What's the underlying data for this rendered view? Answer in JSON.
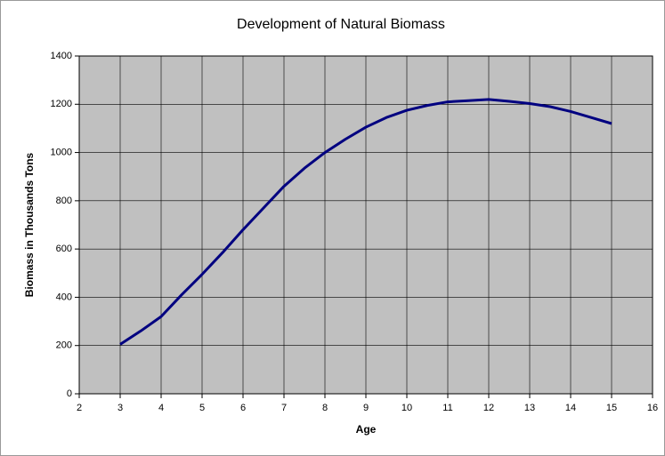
{
  "chart_data": {
    "type": "line",
    "title": "Development of Natural Biomass",
    "xlabel": "Age",
    "ylabel": "Biomass in Thousands Tons",
    "x": [
      3,
      3.5,
      4,
      4.5,
      5,
      5.5,
      6,
      6.5,
      7,
      7.5,
      8,
      8.5,
      9,
      9.5,
      10,
      10.5,
      11,
      11.5,
      12,
      12.5,
      13,
      13.5,
      14,
      14.5,
      15
    ],
    "series": [
      {
        "color": "#000080",
        "values": [
          205,
          260,
          320,
          410,
          495,
          585,
          680,
          770,
          860,
          935,
          1000,
          1055,
          1105,
          1145,
          1175,
          1195,
          1210,
          1215,
          1220,
          1212,
          1203,
          1190,
          1170,
          1145,
          1120
        ]
      }
    ],
    "xlim": [
      2,
      16
    ],
    "xticks": [
      2,
      3,
      4,
      5,
      6,
      7,
      8,
      9,
      10,
      11,
      12,
      13,
      14,
      15,
      16
    ],
    "ylim": [
      0,
      1400
    ],
    "yticks": [
      0,
      200,
      400,
      600,
      800,
      1000,
      1200,
      1400
    ],
    "grid": true,
    "plot_background": "#c0c0c0"
  }
}
